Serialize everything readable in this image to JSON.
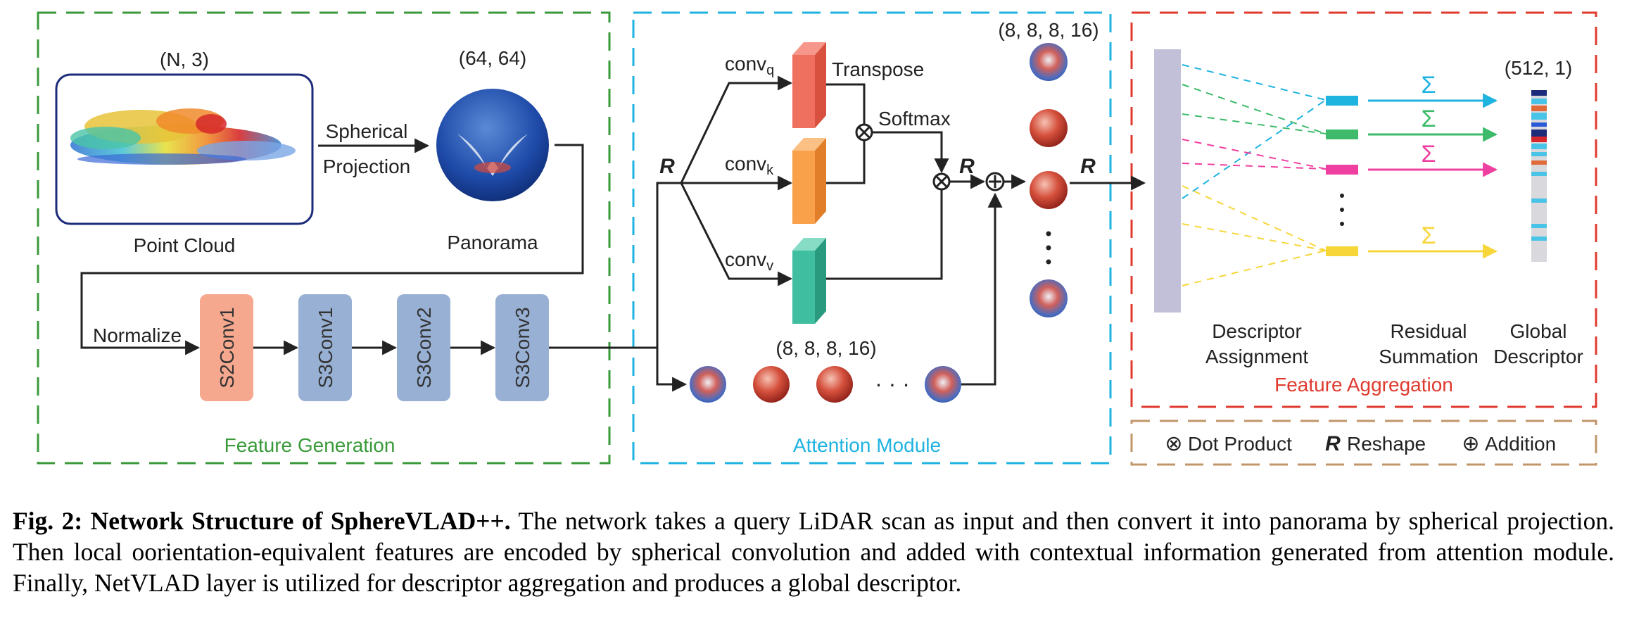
{
  "sections": {
    "feature_generation": "Feature Generation",
    "attention_module": "Attention Module",
    "feature_aggregation": "Feature Aggregation"
  },
  "colors": {
    "feature_generation": "#3a9a3a",
    "attention_module": "#1fb3e0",
    "feature_aggregation": "#e03a2e",
    "legend_border": "#c0966a",
    "conv_q": "#f07060",
    "conv_k": "#f9a04a",
    "conv_v": "#3fbf9f",
    "s2conv": "#f6a88e",
    "s3conv": "#97b0d4",
    "descriptor_bar": "#c2c0d8"
  },
  "feature_generation": {
    "point_cloud_shape": "(N, 3)",
    "point_cloud_label": "Point Cloud",
    "projection_label_line1": "Spherical",
    "projection_label_line2": "Projection",
    "panorama_shape": "(64, 64)",
    "panorama_label": "Panorama",
    "normalize_label": "Normalize",
    "blocks": [
      "S2Conv1",
      "S3Conv1",
      "S3Conv2",
      "S3Conv3"
    ]
  },
  "attention": {
    "reshape_symbol": "R",
    "conv_q": {
      "base": "conv",
      "sub": "q"
    },
    "conv_k": {
      "base": "conv",
      "sub": "k"
    },
    "conv_v": {
      "base": "conv",
      "sub": "v"
    },
    "transpose_label": "Transpose",
    "softmax_label": "Softmax",
    "bottom_shape": "(8, 8, 8, 16)",
    "top_shape": "(8, 8, 8, 16)",
    "ellipsis_h": "· · ·"
  },
  "aggregation": {
    "reshape_symbol": "R",
    "sum_symbol": "Σ",
    "global_shape": "(512, 1)",
    "descriptor_assignment_line1": "Descriptor",
    "descriptor_assignment_line2": "Assignment",
    "residual_summation_line1": "Residual",
    "residual_summation_line2": "Summation",
    "global_descriptor_line1": "Global",
    "global_descriptor_line2": "Descriptor",
    "cluster_colors": [
      "#1fb3e0",
      "#3dbb6a",
      "#ef3fa0",
      "#f7d63a"
    ]
  },
  "legend": {
    "dot_product_symbol": "⊗",
    "dot_product_label": "Dot Product",
    "reshape_symbol": "R",
    "reshape_label": "Reshape",
    "addition_symbol": "⊕",
    "addition_label": "Addition"
  },
  "caption": {
    "title": "Fig. 2: Network Structure of SphereVLAD++.",
    "body": " The network takes a query LiDAR scan as input and then convert it into panorama by spherical projection. Then local oorientation-equivalent features are encoded by spherical convolution and added with contextual information generated from attention module. Finally, NetVLAD layer is utilized for descriptor aggregation and produces a global descriptor."
  }
}
